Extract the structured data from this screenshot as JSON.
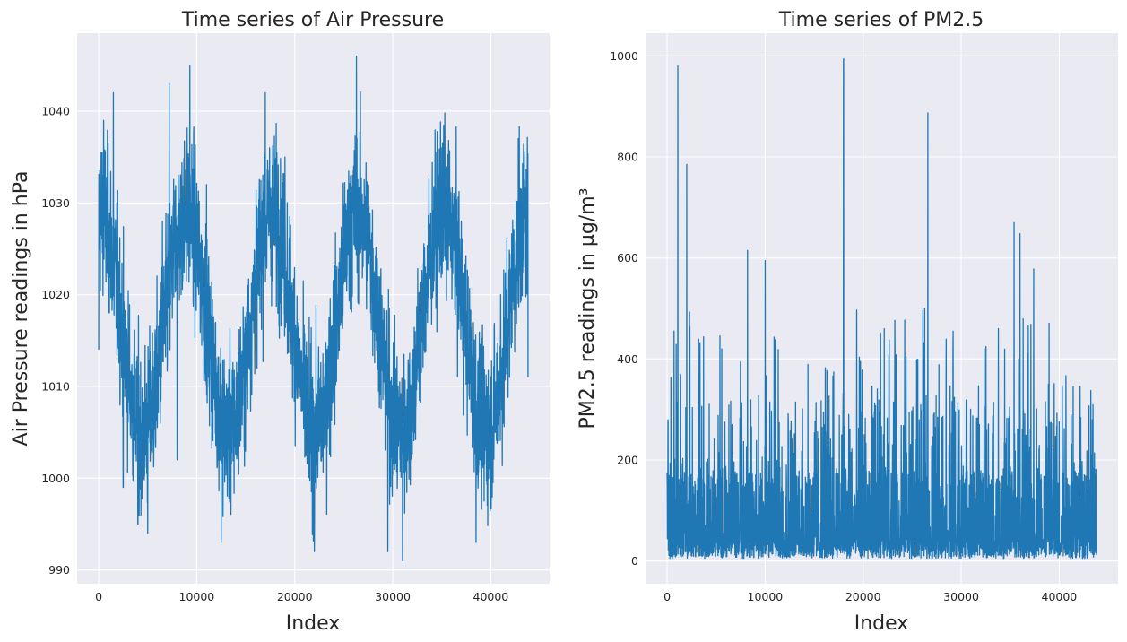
{
  "chart_data": [
    {
      "type": "line",
      "title": "Time series of Air Pressure",
      "xlabel": "Index",
      "ylabel": "Air Pressure readings in hPa",
      "xlim": [
        -2200,
        46000
      ],
      "ylim": [
        988.5,
        1048.5
      ],
      "xticks": [
        0,
        10000,
        20000,
        30000,
        40000
      ],
      "yticks": [
        990,
        1000,
        1010,
        1020,
        1030,
        1040
      ],
      "color": "#1f77b4",
      "x_start": 0,
      "x_end": 43800,
      "description_points": [
        {
          "x": 0,
          "y": 1014
        },
        {
          "x": 500,
          "y": 1039
        },
        {
          "x": 1500,
          "y": 1042
        },
        {
          "x": 2500,
          "y": 999
        },
        {
          "x": 4000,
          "y": 995
        },
        {
          "x": 5000,
          "y": 994
        },
        {
          "x": 6500,
          "y": 1028
        },
        {
          "x": 7200,
          "y": 1043
        },
        {
          "x": 8000,
          "y": 1002
        },
        {
          "x": 9300,
          "y": 1045
        },
        {
          "x": 11000,
          "y": 1032
        },
        {
          "x": 12500,
          "y": 993
        },
        {
          "x": 15000,
          "y": 1010
        },
        {
          "x": 17000,
          "y": 1042
        },
        {
          "x": 19000,
          "y": 1035
        },
        {
          "x": 22000,
          "y": 992
        },
        {
          "x": 24000,
          "y": 1020
        },
        {
          "x": 26300,
          "y": 1046
        },
        {
          "x": 28000,
          "y": 1025
        },
        {
          "x": 29500,
          "y": 992
        },
        {
          "x": 31000,
          "y": 991
        },
        {
          "x": 35000,
          "y": 1036
        },
        {
          "x": 37000,
          "y": 1028
        },
        {
          "x": 38500,
          "y": 993
        },
        {
          "x": 41000,
          "y": 1020
        },
        {
          "x": 42800,
          "y": 1037
        },
        {
          "x": 43800,
          "y": 1011
        }
      ]
    },
    {
      "type": "line",
      "title": "Time series of PM2.5",
      "xlabel": "Index",
      "ylabel": "PM2.5 readings in µg/m³",
      "xlim": [
        -2200,
        46000
      ],
      "ylim": [
        -45,
        1045
      ],
      "xticks": [
        0,
        10000,
        20000,
        30000,
        40000
      ],
      "yticks": [
        0,
        200,
        400,
        600,
        800,
        1000
      ],
      "color": "#1f77b4",
      "x_start": 0,
      "x_end": 43800,
      "peaks": [
        {
          "x": 1100,
          "y": 980
        },
        {
          "x": 2000,
          "y": 785
        },
        {
          "x": 8200,
          "y": 615
        },
        {
          "x": 10000,
          "y": 595
        },
        {
          "x": 18000,
          "y": 994
        },
        {
          "x": 26600,
          "y": 887
        },
        {
          "x": 35400,
          "y": 670
        },
        {
          "x": 36000,
          "y": 648
        },
        {
          "x": 37400,
          "y": 578
        }
      ]
    }
  ]
}
